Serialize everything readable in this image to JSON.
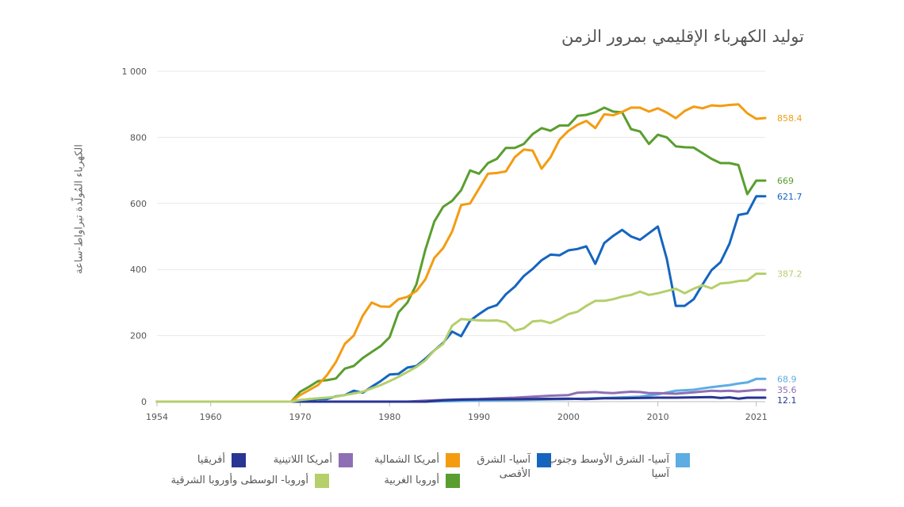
{
  "chart_data": {
    "type": "line",
    "title": "توليد الكهرباء الإقليمي بمرور الزمن",
    "ylabel": "الكهرباء المُولّدة  تيراواط-ساعة",
    "xlabel": "",
    "ylim": [
      0,
      1000
    ],
    "xlim": [
      1954,
      2022
    ],
    "x_ticks": [
      1954,
      1960,
      1970,
      1980,
      1990,
      2000,
      2010,
      2021
    ],
    "y_ticks": [
      0,
      200,
      400,
      600,
      800,
      1000
    ],
    "y_tick_labels": [
      "0",
      "200",
      "400",
      "600",
      "800",
      "1 000"
    ],
    "grid": true,
    "legend_position": "bottom",
    "series": [
      {
        "name": "أمريكا الشمالية",
        "color": "#f39c12",
        "end_label": "858.4",
        "points": [
          [
            1954,
            0
          ],
          [
            1969,
            0
          ],
          [
            1970,
            20
          ],
          [
            1971,
            35
          ],
          [
            1972,
            50
          ],
          [
            1973,
            80
          ],
          [
            1974,
            120
          ],
          [
            1975,
            175
          ],
          [
            1976,
            200
          ],
          [
            1977,
            260
          ],
          [
            1978,
            300
          ],
          [
            1979,
            288
          ],
          [
            1980,
            287
          ],
          [
            1981,
            310
          ],
          [
            1982,
            317
          ],
          [
            1983,
            335
          ],
          [
            1984,
            370
          ],
          [
            1985,
            435
          ],
          [
            1986,
            465
          ],
          [
            1987,
            515
          ],
          [
            1988,
            595
          ],
          [
            1989,
            600
          ],
          [
            1990,
            645
          ],
          [
            1991,
            690
          ],
          [
            1992,
            692
          ],
          [
            1993,
            697
          ],
          [
            1994,
            740
          ],
          [
            1995,
            763
          ],
          [
            1996,
            760
          ],
          [
            1997,
            705
          ],
          [
            1998,
            740
          ],
          [
            1999,
            793
          ],
          [
            2000,
            820
          ],
          [
            2001,
            838
          ],
          [
            2002,
            850
          ],
          [
            2003,
            828
          ],
          [
            2004,
            870
          ],
          [
            2005,
            867
          ],
          [
            2006,
            877
          ],
          [
            2007,
            890
          ],
          [
            2008,
            890
          ],
          [
            2009,
            878
          ],
          [
            2010,
            888
          ],
          [
            2011,
            875
          ],
          [
            2012,
            858
          ],
          [
            2013,
            880
          ],
          [
            2014,
            893
          ],
          [
            2015,
            888
          ],
          [
            2016,
            897
          ],
          [
            2017,
            895
          ],
          [
            2018,
            898
          ],
          [
            2019,
            900
          ],
          [
            2020,
            873
          ],
          [
            2021,
            856
          ],
          [
            2022,
            858.4
          ]
        ]
      },
      {
        "name": "أوروبا الغربية",
        "color": "#5a9e2f",
        "end_label": "669",
        "points": [
          [
            1954,
            0
          ],
          [
            1969,
            0
          ],
          [
            1970,
            30
          ],
          [
            1971,
            45
          ],
          [
            1972,
            62
          ],
          [
            1973,
            65
          ],
          [
            1974,
            70
          ],
          [
            1975,
            100
          ],
          [
            1976,
            108
          ],
          [
            1977,
            132
          ],
          [
            1978,
            150
          ],
          [
            1979,
            168
          ],
          [
            1980,
            195
          ],
          [
            1981,
            270
          ],
          [
            1982,
            300
          ],
          [
            1983,
            355
          ],
          [
            1984,
            460
          ],
          [
            1985,
            545
          ],
          [
            1986,
            590
          ],
          [
            1987,
            608
          ],
          [
            1988,
            640
          ],
          [
            1989,
            700
          ],
          [
            1990,
            690
          ],
          [
            1991,
            722
          ],
          [
            1992,
            735
          ],
          [
            1993,
            768
          ],
          [
            1994,
            768
          ],
          [
            1995,
            780
          ],
          [
            1996,
            810
          ],
          [
            1997,
            828
          ],
          [
            1998,
            820
          ],
          [
            1999,
            836
          ],
          [
            2000,
            836
          ],
          [
            2001,
            865
          ],
          [
            2002,
            868
          ],
          [
            2003,
            876
          ],
          [
            2004,
            890
          ],
          [
            2005,
            878
          ],
          [
            2006,
            876
          ],
          [
            2007,
            825
          ],
          [
            2008,
            818
          ],
          [
            2009,
            780
          ],
          [
            2010,
            808
          ],
          [
            2011,
            800
          ],
          [
            2012,
            773
          ],
          [
            2013,
            770
          ],
          [
            2014,
            769
          ],
          [
            2015,
            752
          ],
          [
            2016,
            735
          ],
          [
            2017,
            722
          ],
          [
            2018,
            722
          ],
          [
            2019,
            716
          ],
          [
            2020,
            628
          ],
          [
            2021,
            669
          ],
          [
            2022,
            669
          ]
        ]
      },
      {
        "name": "آسيا- الشرق الأقصى",
        "color": "#1565c0",
        "end_label": "621.7",
        "points": [
          [
            1954,
            0
          ],
          [
            1969,
            0
          ],
          [
            1970,
            3
          ],
          [
            1971,
            6
          ],
          [
            1972,
            8
          ],
          [
            1973,
            8
          ],
          [
            1974,
            16
          ],
          [
            1975,
            20
          ],
          [
            1976,
            33
          ],
          [
            1977,
            27
          ],
          [
            1978,
            45
          ],
          [
            1979,
            62
          ],
          [
            1980,
            82
          ],
          [
            1981,
            84
          ],
          [
            1982,
            103
          ],
          [
            1983,
            108
          ],
          [
            1984,
            130
          ],
          [
            1985,
            155
          ],
          [
            1986,
            178
          ],
          [
            1987,
            212
          ],
          [
            1988,
            198
          ],
          [
            1989,
            245
          ],
          [
            1990,
            265
          ],
          [
            1991,
            283
          ],
          [
            1992,
            292
          ],
          [
            1993,
            325
          ],
          [
            1994,
            348
          ],
          [
            1995,
            380
          ],
          [
            1996,
            402
          ],
          [
            1997,
            428
          ],
          [
            1998,
            445
          ],
          [
            1999,
            443
          ],
          [
            2000,
            458
          ],
          [
            2001,
            462
          ],
          [
            2002,
            470
          ],
          [
            2003,
            417
          ],
          [
            2004,
            480
          ],
          [
            2005,
            502
          ],
          [
            2006,
            520
          ],
          [
            2007,
            500
          ],
          [
            2008,
            490
          ],
          [
            2009,
            510
          ],
          [
            2010,
            530
          ],
          [
            2011,
            432
          ],
          [
            2012,
            290
          ],
          [
            2013,
            290
          ],
          [
            2014,
            310
          ],
          [
            2015,
            355
          ],
          [
            2016,
            398
          ],
          [
            2017,
            422
          ],
          [
            2018,
            478
          ],
          [
            2019,
            565
          ],
          [
            2020,
            570
          ],
          [
            2021,
            621.7
          ],
          [
            2022,
            621.7
          ]
        ]
      },
      {
        "name": "أوروبا- الوسطى وأوروبا الشرقية",
        "color": "#b5cf6b",
        "end_label": "387.2",
        "points": [
          [
            1954,
            0
          ],
          [
            1969,
            0
          ],
          [
            1970,
            5
          ],
          [
            1971,
            8
          ],
          [
            1972,
            10
          ],
          [
            1973,
            12
          ],
          [
            1974,
            15
          ],
          [
            1975,
            20
          ],
          [
            1976,
            25
          ],
          [
            1977,
            30
          ],
          [
            1978,
            40
          ],
          [
            1979,
            50
          ],
          [
            1980,
            62
          ],
          [
            1981,
            75
          ],
          [
            1982,
            90
          ],
          [
            1983,
            105
          ],
          [
            1984,
            125
          ],
          [
            1985,
            155
          ],
          [
            1986,
            175
          ],
          [
            1987,
            230
          ],
          [
            1988,
            250
          ],
          [
            1989,
            248
          ],
          [
            1990,
            246
          ],
          [
            1991,
            245
          ],
          [
            1992,
            246
          ],
          [
            1993,
            240
          ],
          [
            1994,
            215
          ],
          [
            1995,
            222
          ],
          [
            1996,
            243
          ],
          [
            1997,
            245
          ],
          [
            1998,
            238
          ],
          [
            1999,
            250
          ],
          [
            2000,
            265
          ],
          [
            2001,
            272
          ],
          [
            2002,
            290
          ],
          [
            2003,
            305
          ],
          [
            2004,
            305
          ],
          [
            2005,
            310
          ],
          [
            2006,
            318
          ],
          [
            2007,
            323
          ],
          [
            2008,
            333
          ],
          [
            2009,
            323
          ],
          [
            2010,
            328
          ],
          [
            2011,
            335
          ],
          [
            2012,
            342
          ],
          [
            2013,
            328
          ],
          [
            2014,
            342
          ],
          [
            2015,
            352
          ],
          [
            2016,
            343
          ],
          [
            2017,
            358
          ],
          [
            2018,
            360
          ],
          [
            2019,
            365
          ],
          [
            2020,
            367
          ],
          [
            2021,
            387.2
          ],
          [
            2022,
            387.2
          ]
        ]
      },
      {
        "name": "آسيا- الشرق الأوسط وجنوب آسيا",
        "color": "#5dade2",
        "end_label": "68.9",
        "points": [
          [
            1954,
            0
          ],
          [
            1984,
            0
          ],
          [
            1990,
            3
          ],
          [
            1995,
            5
          ],
          [
            2000,
            8
          ],
          [
            2005,
            12
          ],
          [
            2008,
            15
          ],
          [
            2010,
            22
          ],
          [
            2012,
            33
          ],
          [
            2014,
            36
          ],
          [
            2015,
            40
          ],
          [
            2016,
            44
          ],
          [
            2017,
            47
          ],
          [
            2018,
            50
          ],
          [
            2019,
            55
          ],
          [
            2020,
            58
          ],
          [
            2021,
            68.9
          ],
          [
            2022,
            68.9
          ]
        ]
      },
      {
        "name": "أمريكا اللاتينية",
        "color": "#8e6fb5",
        "end_label": "35.6",
        "points": [
          [
            1954,
            0
          ],
          [
            1982,
            0
          ],
          [
            1984,
            3
          ],
          [
            1986,
            5
          ],
          [
            1988,
            7
          ],
          [
            1990,
            8
          ],
          [
            1992,
            10
          ],
          [
            1994,
            12
          ],
          [
            1996,
            15
          ],
          [
            1998,
            18
          ],
          [
            2000,
            20
          ],
          [
            2001,
            27
          ],
          [
            2003,
            29
          ],
          [
            2004,
            27
          ],
          [
            2005,
            26
          ],
          [
            2006,
            28
          ],
          [
            2007,
            30
          ],
          [
            2008,
            29
          ],
          [
            2009,
            26
          ],
          [
            2010,
            26
          ],
          [
            2012,
            24
          ],
          [
            2014,
            28
          ],
          [
            2016,
            33
          ],
          [
            2017,
            32
          ],
          [
            2018,
            33
          ],
          [
            2019,
            31
          ],
          [
            2020,
            33
          ],
          [
            2021,
            35.6
          ],
          [
            2022,
            35.6
          ]
        ]
      },
      {
        "name": "أفريقيا",
        "color": "#283593",
        "end_label": "12.1",
        "points": [
          [
            1954,
            0
          ],
          [
            1984,
            0
          ],
          [
            1986,
            4
          ],
          [
            1988,
            6
          ],
          [
            1990,
            7
          ],
          [
            1995,
            8
          ],
          [
            2000,
            9
          ],
          [
            2002,
            8
          ],
          [
            2004,
            10
          ],
          [
            2006,
            10
          ],
          [
            2008,
            11
          ],
          [
            2010,
            12
          ],
          [
            2012,
            12
          ],
          [
            2014,
            13
          ],
          [
            2016,
            14
          ],
          [
            2017,
            11
          ],
          [
            2018,
            13
          ],
          [
            2019,
            9
          ],
          [
            2020,
            12
          ],
          [
            2021,
            12.1
          ],
          [
            2022,
            12.1
          ]
        ]
      }
    ]
  },
  "legend": [
    {
      "label": "أفريقيا",
      "color": "#283593"
    },
    {
      "label": "أمريكا اللاتينية",
      "color": "#8e6fb5"
    },
    {
      "label": "أمريكا الشمالية",
      "color": "#f39c12"
    },
    {
      "label": "آسيا- الشرق الأقصى",
      "color": "#1565c0"
    },
    {
      "label": "آسيا- الشرق الأوسط وجنوب آسيا",
      "color": "#5dade2"
    },
    {
      "label": "أوروبا- الوسطى وأوروبا الشرقية",
      "color": "#b5cf6b"
    },
    {
      "label": "أوروبا الغربية",
      "color": "#5a9e2f"
    }
  ]
}
